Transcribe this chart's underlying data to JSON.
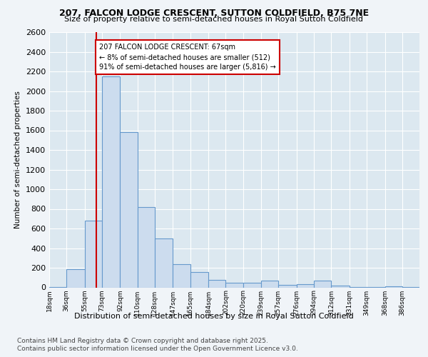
{
  "title1": "207, FALCON LODGE CRESCENT, SUTTON COLDFIELD, B75 7NE",
  "title2": "Size of property relative to semi-detached houses in Royal Sutton Coldfield",
  "xlabel": "Distribution of semi-detached houses by size in Royal Sutton Coldfield",
  "ylabel": "Number of semi-detached properties",
  "annotation_title": "207 FALCON LODGE CRESCENT: 67sqm",
  "annotation_line1": "← 8% of semi-detached houses are smaller (512)",
  "annotation_line2": "91% of semi-detached houses are larger (5,816) →",
  "footer1": "Contains HM Land Registry data © Crown copyright and database right 2025.",
  "footer2": "Contains public sector information licensed under the Open Government Licence v3.0.",
  "property_size": 67,
  "bin_edges": [
    18,
    36,
    55,
    73,
    92,
    110,
    128,
    147,
    165,
    184,
    202,
    220,
    239,
    257,
    276,
    294,
    312,
    331,
    349,
    368,
    386,
    404
  ],
  "bin_labels": [
    "18sqm",
    "36sqm",
    "55sqm",
    "73sqm",
    "92sqm",
    "110sqm",
    "128sqm",
    "147sqm",
    "165sqm",
    "184sqm",
    "202sqm",
    "220sqm",
    "239sqm",
    "257sqm",
    "276sqm",
    "294sqm",
    "312sqm",
    "331sqm",
    "349sqm",
    "368sqm",
    "386sqm"
  ],
  "bar_values": [
    5,
    185,
    680,
    2150,
    1580,
    820,
    500,
    240,
    160,
    80,
    45,
    50,
    70,
    25,
    30,
    70,
    15,
    5,
    5,
    10,
    5
  ],
  "bar_color": "#ccdcee",
  "bar_edge_color": "#6699cc",
  "vline_color": "#cc0000",
  "annotation_box_color": "#cc0000",
  "background_color": "#dce8f0",
  "ylim": [
    0,
    2600
  ],
  "yticks": [
    0,
    200,
    400,
    600,
    800,
    1000,
    1200,
    1400,
    1600,
    1800,
    2000,
    2200,
    2400,
    2600
  ],
  "fig_bg": "#f0f4f8"
}
